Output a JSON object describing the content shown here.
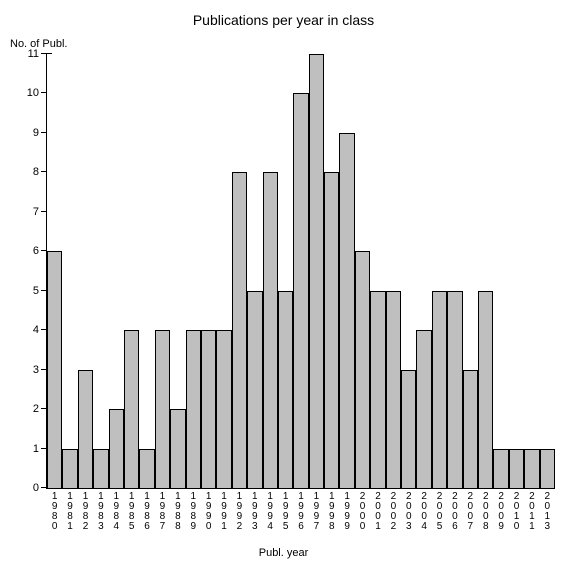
{
  "chart": {
    "type": "bar",
    "title": "Publications per year in class",
    "title_fontsize": 14,
    "y_axis_label": "No. of Publ.",
    "x_axis_label": "Publ. year",
    "label_fontsize": 11,
    "categories": [
      "1980",
      "1981",
      "1982",
      "1983",
      "1984",
      "1985",
      "1986",
      "1987",
      "1988",
      "1989",
      "1990",
      "1991",
      "1992",
      "1993",
      "1994",
      "1995",
      "1996",
      "1997",
      "1998",
      "1999",
      "2000",
      "2001",
      "2002",
      "2003",
      "2004",
      "2005",
      "2006",
      "2007",
      "2008",
      "2009",
      "2010",
      "2011",
      "2013"
    ],
    "values": [
      6,
      1,
      3,
      1,
      2,
      4,
      1,
      4,
      2,
      4,
      4,
      4,
      8,
      5,
      8,
      5,
      10,
      11,
      8,
      9,
      6,
      5,
      5,
      3,
      4,
      5,
      5,
      3,
      5,
      1,
      1,
      1,
      1
    ],
    "ylim": [
      0,
      11
    ],
    "ytick_step": 1,
    "bar_color": "#bfbfbf",
    "bar_border_color": "#000000",
    "background_color": "#ffffff",
    "axis_color": "#000000",
    "tick_label_fontsize": 11,
    "x_tick_label_fontsize": 10,
    "bar_width_ratio": 1.0
  }
}
